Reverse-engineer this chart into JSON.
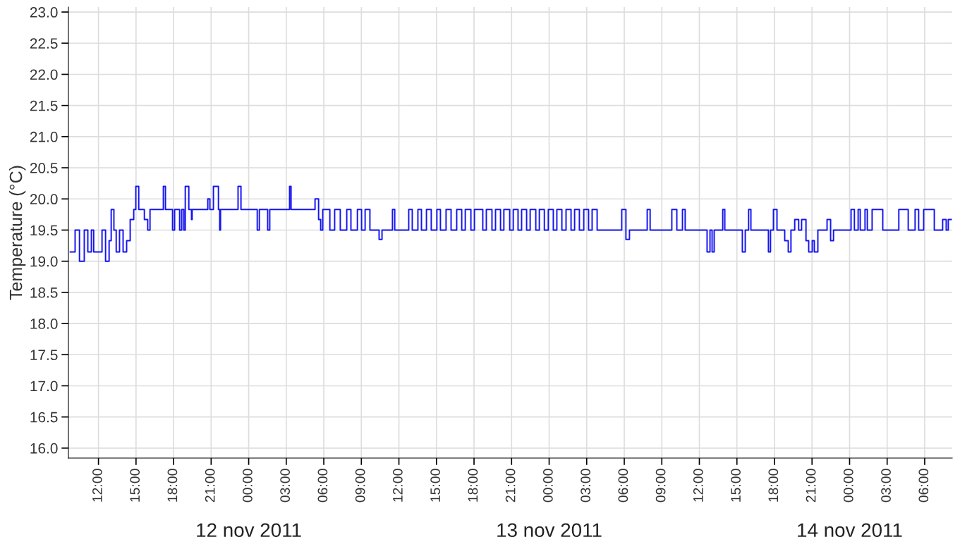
{
  "chart_data": {
    "type": "step",
    "ylabel": "Temperature (°C)",
    "xlim": [
      "2011-11-11T09:36",
      "2011-11-14T08:12"
    ],
    "ylim": [
      15.84,
      23.08
    ],
    "xticks": [
      {
        "value": "2011-11-11T12:00",
        "label": "12:00"
      },
      {
        "value": "2011-11-11T15:00",
        "label": "15:00"
      },
      {
        "value": "2011-11-11T18:00",
        "label": "18:00"
      },
      {
        "value": "2011-11-11T21:00",
        "label": "21:00"
      },
      {
        "value": "2011-11-12T00:00",
        "label": "00:00"
      },
      {
        "value": "2011-11-12T03:00",
        "label": "03:00"
      },
      {
        "value": "2011-11-12T06:00",
        "label": "06:00"
      },
      {
        "value": "2011-11-12T09:00",
        "label": "09:00"
      },
      {
        "value": "2011-11-12T12:00",
        "label": "12:00"
      },
      {
        "value": "2011-11-12T15:00",
        "label": "15:00"
      },
      {
        "value": "2011-11-12T18:00",
        "label": "18:00"
      },
      {
        "value": "2011-11-12T21:00",
        "label": "21:00"
      },
      {
        "value": "2011-11-13T00:00",
        "label": "00:00"
      },
      {
        "value": "2011-11-13T03:00",
        "label": "03:00"
      },
      {
        "value": "2011-11-13T06:00",
        "label": "06:00"
      },
      {
        "value": "2011-11-13T09:00",
        "label": "09:00"
      },
      {
        "value": "2011-11-13T12:00",
        "label": "12:00"
      },
      {
        "value": "2011-11-13T15:00",
        "label": "15:00"
      },
      {
        "value": "2011-11-13T18:00",
        "label": "18:00"
      },
      {
        "value": "2011-11-13T21:00",
        "label": "21:00"
      },
      {
        "value": "2011-11-14T00:00",
        "label": "00:00"
      },
      {
        "value": "2011-11-14T03:00",
        "label": "03:00"
      },
      {
        "value": "2011-11-14T06:00",
        "label": "06:00"
      }
    ],
    "x2lim": [
      "2011-11-11T09:36",
      "2011-11-14T08:12"
    ],
    "x2ticks": [
      {
        "value": "2011-11-12",
        "label": "12 nov 2011"
      },
      {
        "value": "2011-11-13",
        "label": "13 nov 2011"
      },
      {
        "value": "2011-11-14",
        "label": "14 nov 2011"
      }
    ],
    "yticks": [
      {
        "value": 16,
        "label": "16.0"
      },
      {
        "value": 16.5,
        "label": "16.5"
      },
      {
        "value": 17,
        "label": "17.0"
      },
      {
        "value": 17.5,
        "label": "17.5"
      },
      {
        "value": 18,
        "label": "18.0"
      },
      {
        "value": 18.5,
        "label": "18.5"
      },
      {
        "value": 19,
        "label": "19.0"
      },
      {
        "value": 19.5,
        "label": "19.5"
      },
      {
        "value": 20,
        "label": "20.0"
      },
      {
        "value": 20.5,
        "label": "20.5"
      },
      {
        "value": 21,
        "label": "21.0"
      },
      {
        "value": 21.5,
        "label": "21.5"
      },
      {
        "value": 22,
        "label": "22.0"
      },
      {
        "value": 22.5,
        "label": "22.5"
      },
      {
        "value": 23,
        "label": "23.0"
      }
    ],
    "grid": true,
    "line_style": "solid",
    "marker": "none",
    "series": [
      {
        "color": "#1414f0",
        "x": [
          "2011-11-11T09:45",
          "2011-11-11T10:08",
          "2011-11-11T10:29",
          "2011-11-11T10:52",
          "2011-11-11T11:09",
          "2011-11-11T11:26",
          "2011-11-11T11:37",
          "2011-11-11T12:17",
          "2011-11-11T12:34",
          "2011-11-11T12:51",
          "2011-11-11T13:01",
          "2011-11-11T13:14",
          "2011-11-11T13:25",
          "2011-11-11T13:41",
          "2011-11-11T13:58",
          "2011-11-11T14:15",
          "2011-11-11T14:32",
          "2011-11-11T14:49",
          "2011-11-11T14:59",
          "2011-11-11T15:13",
          "2011-11-11T15:40",
          "2011-11-11T15:56",
          "2011-11-11T16:07",
          "2011-11-11T17:11",
          "2011-11-11T17:21",
          "2011-11-11T17:55",
          "2011-11-11T18:05",
          "2011-11-11T18:29",
          "2011-11-11T18:39",
          "2011-11-11T18:49",
          "2011-11-11T18:56",
          "2011-11-11T19:13",
          "2011-11-11T19:26",
          "2011-11-11T19:29",
          "2011-11-11T20:44",
          "2011-11-11T20:54",
          "2011-11-11T21:11",
          "2011-11-11T21:35",
          "2011-11-11T21:41",
          "2011-11-11T21:45",
          "2011-11-11T23:09",
          "2011-11-11T23:23",
          "2011-11-12T00:41",
          "2011-11-12T00:51",
          "2011-11-12T01:31",
          "2011-11-12T01:41",
          "2011-11-12T03:16",
          "2011-11-12T03:23",
          "2011-11-12T05:18",
          "2011-11-12T05:35",
          "2011-11-12T05:45",
          "2011-11-12T05:55",
          "2011-11-12T06:29",
          "2011-11-12T06:52",
          "2011-11-12T07:19",
          "2011-11-12T07:50",
          "2011-11-12T08:10",
          "2011-11-12T08:41",
          "2011-11-12T09:01",
          "2011-11-12T09:18",
          "2011-11-12T09:41",
          "2011-11-12T10:25",
          "2011-11-12T10:39",
          "2011-11-12T11:29",
          "2011-11-12T11:40",
          "2011-11-12T12:47",
          "2011-11-12T13:04",
          "2011-11-12T13:31",
          "2011-11-12T13:48",
          "2011-11-12T14:12",
          "2011-11-12T14:35",
          "2011-11-12T15:02",
          "2011-11-12T15:19",
          "2011-11-12T15:46",
          "2011-11-12T16:10",
          "2011-11-12T16:37",
          "2011-11-12T17:01",
          "2011-11-12T17:18",
          "2011-11-12T17:45",
          "2011-11-12T18:02",
          "2011-11-12T18:42",
          "2011-11-12T18:59",
          "2011-11-12T19:26",
          "2011-11-12T19:43",
          "2011-11-12T20:07",
          "2011-11-12T20:23",
          "2011-11-12T20:51",
          "2011-11-12T21:08",
          "2011-11-12T21:31",
          "2011-11-12T21:48",
          "2011-11-12T22:12",
          "2011-11-12T22:29",
          "2011-11-12T22:56",
          "2011-11-12T23:13",
          "2011-11-12T23:37",
          "2011-11-12T23:56",
          "2011-11-13T00:20",
          "2011-11-13T00:37",
          "2011-11-13T01:01",
          "2011-11-13T01:21",
          "2011-11-13T01:45",
          "2011-11-13T02:02",
          "2011-11-13T02:25",
          "2011-11-13T02:46",
          "2011-11-13T03:09",
          "2011-11-13T03:26",
          "2011-11-13T03:50",
          "2011-11-13T05:48",
          "2011-11-13T06:08",
          "2011-11-13T06:25",
          "2011-11-13T07:50",
          "2011-11-13T08:04",
          "2011-11-13T09:48",
          "2011-11-13T10:12",
          "2011-11-13T10:39",
          "2011-11-13T10:52",
          "2011-11-13T12:37",
          "2011-11-13T12:51",
          "2011-11-13T13:01",
          "2011-11-13T13:11",
          "2011-11-13T13:52",
          "2011-11-13T14:02",
          "2011-11-13T15:26",
          "2011-11-13T15:40",
          "2011-11-13T15:56",
          "2011-11-13T16:07",
          "2011-11-13T17:31",
          "2011-11-13T17:41",
          "2011-11-13T17:55",
          "2011-11-13T18:12",
          "2011-11-13T18:49",
          "2011-11-13T19:06",
          "2011-11-13T19:19",
          "2011-11-13T19:37",
          "2011-11-13T19:56",
          "2011-11-13T20:10",
          "2011-11-13T20:31",
          "2011-11-13T20:44",
          "2011-11-13T21:01",
          "2011-11-13T21:11",
          "2011-11-13T21:28",
          "2011-11-13T22:12",
          "2011-11-13T22:29",
          "2011-11-13T22:43",
          "2011-11-14T00:07",
          "2011-11-14T00:23",
          "2011-11-14T00:41",
          "2011-11-14T00:51",
          "2011-11-14T01:14",
          "2011-11-14T01:25",
          "2011-11-14T01:48",
          "2011-11-14T02:39",
          "2011-11-14T03:56",
          "2011-11-14T04:41",
          "2011-11-14T05:14",
          "2011-11-14T05:31",
          "2011-11-14T05:55",
          "2011-11-14T06:46",
          "2011-11-14T07:26",
          "2011-11-14T07:43",
          "2011-11-14T07:53",
          "2011-11-14T08:07"
        ],
        "values": [
          19.15,
          19.5,
          19.0,
          19.5,
          19.15,
          19.5,
          19.15,
          19.5,
          19.0,
          19.33,
          19.83,
          19.5,
          19.15,
          19.5,
          19.15,
          19.33,
          19.67,
          19.83,
          20.2,
          19.83,
          19.67,
          19.5,
          19.83,
          20.2,
          19.83,
          19.5,
          19.83,
          19.5,
          19.83,
          19.5,
          20.2,
          19.83,
          19.67,
          19.83,
          20.0,
          19.83,
          20.2,
          19.83,
          19.5,
          19.83,
          20.2,
          19.83,
          19.5,
          19.83,
          19.5,
          19.83,
          20.2,
          19.83,
          20.0,
          19.67,
          19.5,
          19.83,
          19.5,
          19.83,
          19.5,
          19.83,
          19.5,
          19.83,
          19.5,
          19.83,
          19.5,
          19.35,
          19.5,
          19.83,
          19.5,
          19.83,
          19.5,
          19.83,
          19.5,
          19.83,
          19.5,
          19.83,
          19.5,
          19.83,
          19.5,
          19.83,
          19.5,
          19.83,
          19.5,
          19.83,
          19.5,
          19.83,
          19.5,
          19.83,
          19.5,
          19.83,
          19.5,
          19.83,
          19.5,
          19.83,
          19.5,
          19.83,
          19.5,
          19.83,
          19.5,
          19.83,
          19.5,
          19.83,
          19.5,
          19.83,
          19.5,
          19.83,
          19.5,
          19.83,
          19.5,
          19.83,
          19.5,
          19.83,
          19.35,
          19.5,
          19.83,
          19.5,
          19.83,
          19.5,
          19.83,
          19.5,
          19.15,
          19.5,
          19.15,
          19.5,
          19.83,
          19.5,
          19.15,
          19.5,
          19.83,
          19.5,
          19.15,
          19.5,
          19.83,
          19.5,
          19.33,
          19.15,
          19.5,
          19.67,
          19.5,
          19.67,
          19.33,
          19.15,
          19.33,
          19.15,
          19.5,
          19.67,
          19.33,
          19.5,
          19.83,
          19.5,
          19.83,
          19.5,
          19.83,
          19.5,
          19.83,
          19.5,
          19.83,
          19.5,
          19.83,
          19.5,
          19.83,
          19.5,
          19.67,
          19.5,
          19.67,
          19.67
        ]
      }
    ]
  }
}
